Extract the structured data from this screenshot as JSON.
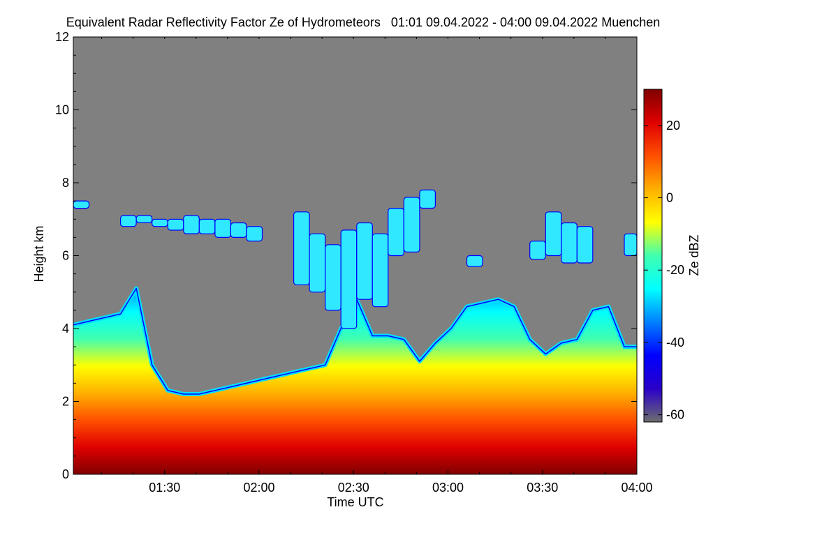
{
  "chart_data": {
    "type": "heatmap",
    "title": "Equivalent Radar Reflectivity Factor Ze of Hydrometeors",
    "period": "01:01 09.04.2022 - 04:00 09.04.2022",
    "location": "Muenchen",
    "xlabel": "Time UTC",
    "ylabel": "Height km",
    "colorbar_label": "Ze dBZ",
    "x_range": [
      "01:01",
      "04:00"
    ],
    "ylim": [
      0,
      12
    ],
    "x_ticks": [
      "01:30",
      "02:00",
      "02:30",
      "03:00",
      "03:30",
      "04:00"
    ],
    "y_ticks": [
      0,
      2,
      4,
      6,
      8,
      10,
      12
    ],
    "colorbar_range": [
      -62,
      30
    ],
    "colorbar_ticks": [
      20,
      0,
      -20,
      -40,
      -60
    ],
    "background_color": "#808080",
    "colormap": [
      "#6e6e6e",
      "#2a00c8",
      "#0000ff",
      "#0080ff",
      "#00ffff",
      "#40ffb0",
      "#ffff00",
      "#ffb000",
      "#ff5000",
      "#e00000",
      "#800000"
    ],
    "echo_top_km": [
      {
        "time": "01:01",
        "top": 4.1,
        "upper_from": 7.3,
        "upper_to": 7.5
      },
      {
        "time": "01:06",
        "top": 4.2,
        "upper_from": 0,
        "upper_to": 0
      },
      {
        "time": "01:11",
        "top": 4.3,
        "upper_from": 0,
        "upper_to": 0
      },
      {
        "time": "01:16",
        "top": 4.4,
        "upper_from": 6.8,
        "upper_to": 7.1
      },
      {
        "time": "01:21",
        "top": 5.1,
        "upper_from": 6.9,
        "upper_to": 7.1
      },
      {
        "time": "01:26",
        "top": 3.0,
        "upper_from": 6.8,
        "upper_to": 7.0
      },
      {
        "time": "01:31",
        "top": 2.3,
        "upper_from": 6.7,
        "upper_to": 7.0
      },
      {
        "time": "01:36",
        "top": 2.2,
        "upper_from": 6.6,
        "upper_to": 7.1
      },
      {
        "time": "01:41",
        "top": 2.2,
        "upper_from": 6.6,
        "upper_to": 7.0
      },
      {
        "time": "01:46",
        "top": 2.3,
        "upper_from": 6.5,
        "upper_to": 7.0
      },
      {
        "time": "01:51",
        "top": 2.4,
        "upper_from": 6.5,
        "upper_to": 6.9
      },
      {
        "time": "01:56",
        "top": 2.5,
        "upper_from": 6.4,
        "upper_to": 6.8
      },
      {
        "time": "02:01",
        "top": 2.6,
        "upper_from": 0,
        "upper_to": 0
      },
      {
        "time": "02:06",
        "top": 2.7,
        "upper_from": 0,
        "upper_to": 0
      },
      {
        "time": "02:11",
        "top": 2.8,
        "upper_from": 5.2,
        "upper_to": 7.2
      },
      {
        "time": "02:16",
        "top": 2.9,
        "upper_from": 5.0,
        "upper_to": 6.6
      },
      {
        "time": "02:21",
        "top": 3.0,
        "upper_from": 4.5,
        "upper_to": 6.3
      },
      {
        "time": "02:26",
        "top": 4.0,
        "upper_from": 4.0,
        "upper_to": 6.7
      },
      {
        "time": "02:31",
        "top": 4.8,
        "upper_from": 4.8,
        "upper_to": 6.9
      },
      {
        "time": "02:36",
        "top": 3.8,
        "upper_from": 4.6,
        "upper_to": 6.6
      },
      {
        "time": "02:41",
        "top": 3.8,
        "upper_from": 6.0,
        "upper_to": 7.3
      },
      {
        "time": "02:46",
        "top": 3.7,
        "upper_from": 6.1,
        "upper_to": 7.6
      },
      {
        "time": "02:51",
        "top": 3.1,
        "upper_from": 7.3,
        "upper_to": 7.8
      },
      {
        "time": "02:56",
        "top": 3.6,
        "upper_from": 0,
        "upper_to": 0
      },
      {
        "time": "03:01",
        "top": 4.0,
        "upper_from": 0,
        "upper_to": 0
      },
      {
        "time": "03:06",
        "top": 4.6,
        "upper_from": 5.7,
        "upper_to": 6.0
      },
      {
        "time": "03:11",
        "top": 4.7,
        "upper_from": 0,
        "upper_to": 0
      },
      {
        "time": "03:16",
        "top": 4.8,
        "upper_from": 0,
        "upper_to": 0
      },
      {
        "time": "03:21",
        "top": 4.6,
        "upper_from": 0,
        "upper_to": 0
      },
      {
        "time": "03:26",
        "top": 3.7,
        "upper_from": 5.9,
        "upper_to": 6.4
      },
      {
        "time": "03:31",
        "top": 3.3,
        "upper_from": 6.0,
        "upper_to": 7.2
      },
      {
        "time": "03:36",
        "top": 3.6,
        "upper_from": 5.8,
        "upper_to": 6.9
      },
      {
        "time": "03:41",
        "top": 3.7,
        "upper_from": 5.8,
        "upper_to": 6.8
      },
      {
        "time": "03:46",
        "top": 4.5,
        "upper_from": 0,
        "upper_to": 0
      },
      {
        "time": "03:51",
        "top": 4.6,
        "upper_from": 0,
        "upper_to": 0
      },
      {
        "time": "03:56",
        "top": 3.5,
        "upper_from": 6.0,
        "upper_to": 6.6
      },
      {
        "time": "04:00",
        "top": 3.5,
        "upper_from": 6.0,
        "upper_to": 6.7
      }
    ]
  }
}
